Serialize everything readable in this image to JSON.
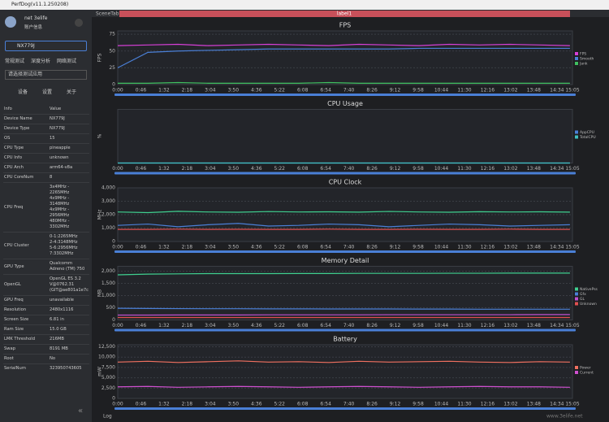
{
  "app": {
    "title": "PerfDog(v11.1.250208)",
    "tabs": [
      "SceneTab",
      "label1"
    ],
    "log": "Log",
    "watermark": "www.3elife.net"
  },
  "sidebar": {
    "user": "net 3elife",
    "account": "账户信息",
    "device": "NX779J",
    "test_tabs": [
      "常规测试",
      "深度分析",
      "网络测试"
    ],
    "app_select": "请选择测试应用",
    "info_tabs": [
      "设备",
      "设置",
      "关于"
    ],
    "table": {
      "header": [
        "Info",
        "Value"
      ],
      "rows": [
        [
          "Device Name",
          "NX779J"
        ],
        [
          "Device Type",
          "NX779J"
        ],
        [
          "OS",
          "15"
        ],
        [
          "CPU Type",
          "pineapple"
        ],
        [
          "CPU Info",
          "unknown"
        ],
        [
          "CPU Arch",
          "arm64-v8a"
        ],
        [
          "CPU CoreNum",
          "8"
        ],
        [
          "CPU Freq",
          "3x4MHz - 2265MHz\n4x9MHz - 3148MHz\n4x9MHz - 2956MHz\n480MHz - 3302MHz"
        ],
        [
          "CPU Cluster",
          "0-1:2265MHz\n2-4:3148MHz\n5-6:2956MHz\n7:3302MHz"
        ],
        [
          "GPU Type",
          "Qualcomm Adreno (TM) 750"
        ],
        [
          "OpenGL",
          "OpenGL ES 3.2\nV@0762.31\n(GIT@ae801a1e7c"
        ],
        [
          "GPU Freq",
          "unavailable"
        ],
        [
          "Resolution",
          "2480x1116"
        ],
        [
          "Screen Size",
          "6.81 in"
        ],
        [
          "Ram Size",
          "15.0 GB"
        ],
        [
          "LMK Threshold",
          "216MB"
        ],
        [
          "Swap",
          "8191 MB"
        ],
        [
          "Root",
          "No"
        ],
        [
          "SerialNum",
          "323950743605"
        ]
      ]
    }
  },
  "chart_data": [
    {
      "type": "line",
      "title": "FPS",
      "y_label": "FPS",
      "x": [
        0,
        60,
        120,
        180,
        240,
        300,
        360,
        420,
        480,
        540,
        600,
        660,
        720,
        780,
        840,
        900
      ],
      "xlim": [
        0,
        905
      ],
      "ylim": [
        0,
        80
      ],
      "yticks": [
        0,
        25,
        50,
        75
      ],
      "series": [
        {
          "name": "FPS",
          "color": "#d63fd6",
          "values": [
            58,
            59,
            60,
            58,
            59,
            60,
            59,
            58,
            60,
            59,
            58,
            60,
            59,
            60,
            59,
            58
          ]
        },
        {
          "name": "Smooth",
          "color": "#4a7fd6",
          "values": [
            25,
            48,
            50,
            51,
            52,
            53,
            53,
            53,
            53,
            53,
            54,
            54,
            54,
            54,
            54,
            54
          ]
        },
        {
          "name": "Jank",
          "color": "#40c060",
          "values": [
            2,
            2,
            3,
            2,
            2,
            2,
            2,
            3,
            2,
            2,
            2,
            2,
            2,
            2,
            2,
            2
          ]
        }
      ]
    },
    {
      "type": "line",
      "title": "CPU Usage",
      "y_label": "%",
      "x": [
        0,
        60,
        120,
        180,
        240,
        300,
        360,
        420,
        480,
        540,
        600,
        660,
        720,
        780,
        840,
        900
      ],
      "xlim": [
        0,
        905
      ],
      "ylim": [
        0,
        100
      ],
      "yticks": [],
      "series": [
        {
          "name": "AppCPU",
          "color": "#4a7fd6",
          "values": [
            0,
            0,
            0,
            0,
            0,
            0,
            0,
            0,
            0,
            0,
            0,
            0,
            0,
            0,
            0,
            0
          ]
        },
        {
          "name": "TotalCPU",
          "color": "#40c0c0",
          "values": [
            0,
            0,
            0,
            0,
            0,
            0,
            0,
            0,
            0,
            0,
            0,
            0,
            0,
            0,
            0,
            0
          ]
        }
      ]
    },
    {
      "type": "line",
      "title": "CPU Clock",
      "y_label": "MHz",
      "x": [
        0,
        60,
        120,
        180,
        240,
        300,
        360,
        420,
        480,
        540,
        600,
        660,
        720,
        780,
        840,
        900
      ],
      "xlim": [
        0,
        905
      ],
      "ylim": [
        0,
        4000
      ],
      "yticks": [
        0,
        {
          "value": 1000,
          "label": "1,000"
        },
        {
          "value": 2000,
          "label": "2,000"
        },
        {
          "value": 3000,
          "label": "3,000"
        },
        {
          "value": 4000,
          "label": "4,000"
        }
      ],
      "series": [
        {
          "color": "#3fcf8f",
          "values": [
            2200,
            2150,
            2250,
            2200,
            2180,
            2230,
            2200,
            2210,
            2190,
            2240,
            2200,
            2180,
            2220,
            2200,
            2210,
            2190
          ]
        },
        {
          "color": "#4a7fd6",
          "values": [
            1200,
            1300,
            1100,
            1250,
            1350,
            1150,
            1200,
            1300,
            1250,
            1100,
            1200,
            1300,
            1250,
            1150,
            1200,
            1250
          ]
        },
        {
          "color": "#e05050",
          "values": [
            900,
            900,
            920,
            900,
            910,
            900,
            900,
            920,
            900,
            900,
            910,
            900,
            900,
            920,
            900,
            900
          ]
        }
      ]
    },
    {
      "type": "line",
      "title": "Memory Detail",
      "y_label": "MB",
      "x": [
        0,
        60,
        120,
        180,
        240,
        300,
        360,
        420,
        480,
        540,
        600,
        660,
        720,
        780,
        840,
        900
      ],
      "xlim": [
        0,
        905
      ],
      "ylim": [
        0,
        2200
      ],
      "yticks": [
        0,
        500,
        {
          "value": 1000,
          "label": "1,000"
        },
        {
          "value": 1500,
          "label": "1,500"
        },
        {
          "value": 2000,
          "label": "2,000"
        }
      ],
      "series": [
        {
          "name": "NativePss",
          "color": "#3fcf8f",
          "values": [
            1850,
            1880,
            1890,
            1900,
            1900,
            1900,
            1905,
            1905,
            1910,
            1910,
            1910,
            1915,
            1915,
            1920,
            1920,
            1920
          ]
        },
        {
          "name": "Gfx",
          "color": "#4a7fd6",
          "values": [
            480,
            470,
            465,
            460,
            460,
            455,
            455,
            450,
            450,
            450,
            445,
            445,
            440,
            440,
            440,
            440
          ]
        },
        {
          "name": "GL",
          "color": "#c050d0",
          "values": [
            200,
            200,
            205,
            205,
            205,
            210,
            210,
            210,
            210,
            215,
            215,
            215,
            215,
            215,
            220,
            220
          ]
        },
        {
          "name": "Unknown",
          "color": "#e05050",
          "values": [
            100,
            100,
            100,
            100,
            100,
            100,
            100,
            100,
            100,
            100,
            100,
            100,
            100,
            100,
            100,
            100
          ]
        }
      ]
    },
    {
      "type": "line",
      "title": "Battery",
      "y_label": "mW",
      "x": [
        0,
        60,
        120,
        180,
        240,
        300,
        360,
        420,
        480,
        540,
        600,
        660,
        720,
        780,
        840,
        900
      ],
      "xlim": [
        0,
        905
      ],
      "ylim": [
        0,
        13000
      ],
      "yticks": [
        0,
        {
          "value": 2500,
          "label": "2,500"
        },
        {
          "value": 5000,
          "label": "5,000"
        },
        {
          "value": 7500,
          "label": "7,500"
        },
        {
          "value": 10000,
          "label": "10,000"
        },
        {
          "value": 12500,
          "label": "12,500"
        }
      ],
      "series": [
        {
          "name": "Power",
          "color": "#f07060",
          "values": [
            8800,
            9000,
            8700,
            8900,
            9100,
            8800,
            8900,
            8700,
            9000,
            8800,
            8900,
            9000,
            8800,
            8700,
            8900,
            8800
          ]
        },
        {
          "name": "Current",
          "color": "#d050d0",
          "values": [
            2800,
            2900,
            2700,
            2800,
            2900,
            2800,
            2700,
            2800,
            2900,
            2800,
            2700,
            2800,
            2900,
            2800,
            2800,
            2700
          ]
        }
      ]
    }
  ]
}
